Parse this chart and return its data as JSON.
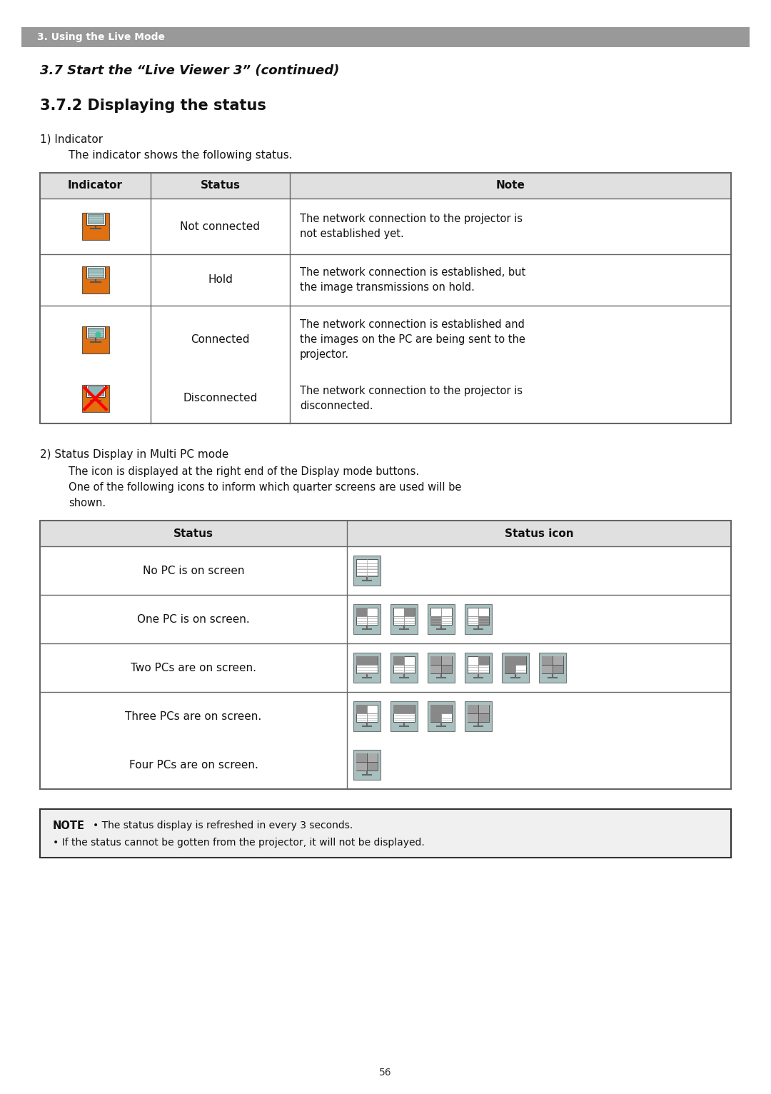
{
  "page_bg": "#ffffff",
  "header_bg": "#999999",
  "header_text": "3. Using the Live Mode",
  "header_text_color": "#ffffff",
  "title1": "3.7 Start the “Live Viewer 3” (continued)",
  "title2": "3.7.2 Displaying the status",
  "section1_label": "1) Indicator",
  "section1_desc": "The indicator shows the following status.",
  "table1_headers": [
    "Indicator",
    "Status",
    "Note"
  ],
  "table1_rows": [
    [
      "not_connected",
      "Not connected",
      "The network connection to the projector is\nnot established yet."
    ],
    [
      "hold",
      "Hold",
      "The network connection is established, but\nthe image transmissions on hold."
    ],
    [
      "connected",
      "Connected",
      "The network connection is established and\nthe images on the PC are being sent to the\nprojector."
    ],
    [
      "disconnected",
      "Disconnected",
      "The network connection to the projector is\ndisconnected."
    ]
  ],
  "section2_label": "2) Status Display in Multi PC mode",
  "section2_desc1": "The icon is displayed at the right end of the Display mode buttons.",
  "section2_desc2": "One of the following icons to inform which quarter screens are used will be",
  "section2_desc3": "shown.",
  "table2_headers": [
    "Status",
    "Status icon"
  ],
  "table2_rows": [
    "No PC is on screen",
    "One PC is on screen.",
    "Two PCs are on screen.",
    "Three PCs are on screen.",
    "Four PCs are on screen."
  ],
  "note_line1": "• The status display is refreshed in every 3 seconds.",
  "note_line2": "• If the status cannot be gotten from the projector, it will not be displayed.",
  "page_num": "56",
  "orange": "#e07010",
  "table_border": "#666666",
  "header_row_bg": "#e0e0e0",
  "gray_icon_bg": "#a8c0c0"
}
